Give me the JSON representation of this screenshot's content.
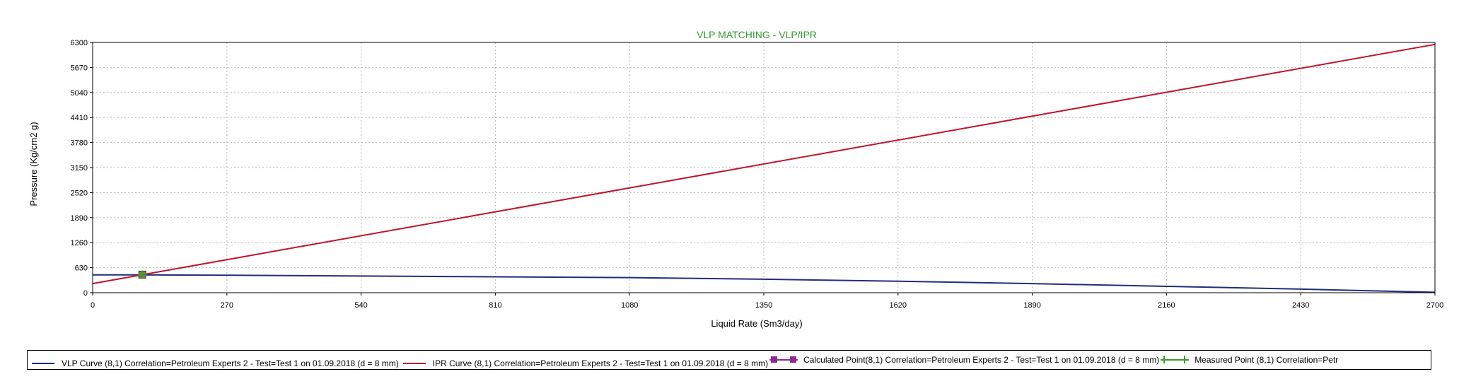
{
  "chart_data": {
    "type": "line",
    "title": "VLP MATCHING - VLP/IPR",
    "xlabel": "Liquid Rate  (Sm3/day)",
    "ylabel": "Pressure  (Kg/cm2 g)",
    "xlim": [
      0,
      2700
    ],
    "ylim": [
      0,
      6300
    ],
    "x_ticks": [
      "0",
      "270",
      "540",
      "810",
      "1080",
      "1350",
      "1620",
      "1890",
      "2160",
      "2430",
      "2700"
    ],
    "y_ticks": [
      "0",
      "630",
      "1260",
      "1890",
      "2520",
      "3150",
      "3780",
      "4410",
      "5040",
      "5670",
      "6300"
    ],
    "grid": true,
    "legend_position": "bottom",
    "series": [
      {
        "name": "VLP Curve (8,1) Correlation=Petroleum Experts 2 - Test=Test 1 on 01.09.2018 (d = 8 mm)",
        "color": "#1f2f7a",
        "style": "line",
        "x": [
          0,
          100,
          270,
          540,
          810,
          1080,
          1350,
          1620,
          1890,
          2160,
          2430,
          2600,
          2700
        ],
        "y": [
          450,
          450,
          440,
          420,
          400,
          380,
          340,
          290,
          230,
          160,
          90,
          40,
          10
        ]
      },
      {
        "name": "IPR Curve (8,1) Correlation=Petroleum Experts 2 - Test=Test 1 on 01.09.2018 (d = 8 mm)",
        "color": "#c0142b",
        "style": "line",
        "x": [
          0,
          2700
        ],
        "y": [
          230,
          6250
        ]
      },
      {
        "name": "Calculated Point(8,1) Correlation=Petroleum Experts 2 - Test=Test 1 on 01.09.2018 (d = 8 mm)",
        "color": "#8b2a8f",
        "style": "square",
        "x": [
          100
        ],
        "y": [
          455
        ]
      },
      {
        "name": "Measured Point (8,1) Correlation=Petr",
        "color": "#3aa020",
        "style": "cross",
        "x": [
          100
        ],
        "y": [
          455
        ]
      }
    ]
  }
}
